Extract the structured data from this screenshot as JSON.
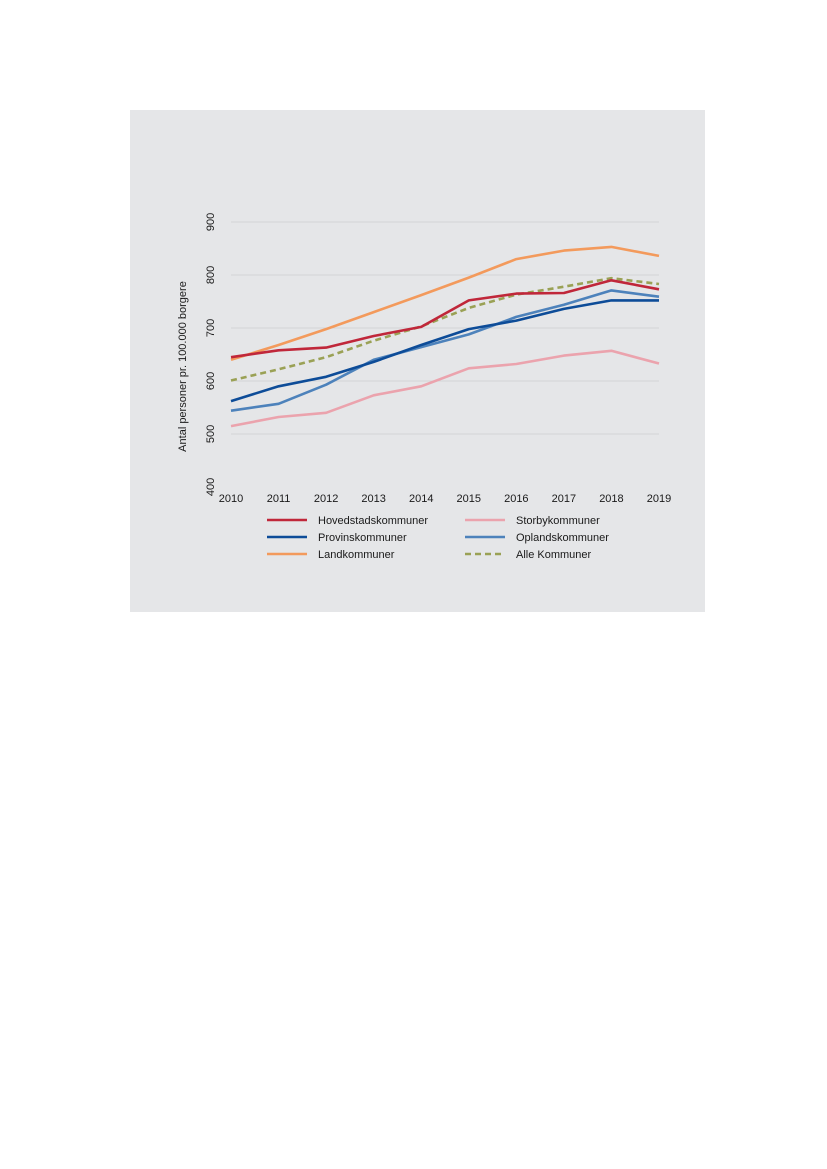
{
  "chart_data": {
    "type": "line",
    "title": "",
    "xlabel": "",
    "ylabel": "Antal personer pr. 100.000 borgere",
    "x": [
      2010,
      2011,
      2012,
      2013,
      2014,
      2015,
      2016,
      2017,
      2018,
      2019
    ],
    "ylim": [
      400,
      900
    ],
    "yticks": [
      400,
      500,
      600,
      700,
      800,
      900
    ],
    "grid": "horizontal",
    "legend_position": "bottom",
    "series": [
      {
        "name": "Hovedstadskommuner",
        "color": "#c0273a",
        "dash": "solid",
        "values": [
          645,
          658,
          663,
          685,
          702,
          752,
          765,
          766,
          790,
          773
        ]
      },
      {
        "name": "Storbykommuner",
        "color": "#eba3ad",
        "dash": "solid",
        "values": [
          515,
          532,
          540,
          573,
          590,
          624,
          632,
          648,
          657,
          633
        ]
      },
      {
        "name": "Provinskommuner",
        "color": "#0d4c98",
        "dash": "solid",
        "values": [
          562,
          590,
          608,
          636,
          668,
          698,
          714,
          736,
          752,
          752
        ]
      },
      {
        "name": "Oplandskommuner",
        "color": "#4d82bb",
        "dash": "solid",
        "values": [
          544,
          557,
          593,
          640,
          664,
          688,
          721,
          744,
          771,
          759
        ]
      },
      {
        "name": "Landkommuner",
        "color": "#f39a5c",
        "dash": "solid",
        "values": [
          640,
          668,
          698,
          730,
          762,
          795,
          830,
          846,
          853,
          836
        ]
      },
      {
        "name": "Alle Kommuner",
        "color": "#9aa155",
        "dash": "dashed",
        "values": [
          601,
          622,
          645,
          676,
          703,
          738,
          763,
          778,
          794,
          783
        ]
      }
    ]
  }
}
